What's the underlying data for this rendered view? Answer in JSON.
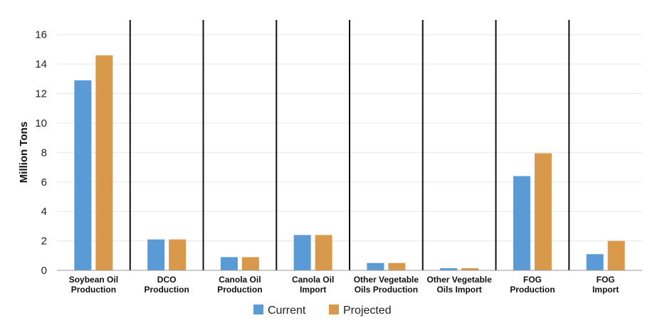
{
  "chart_data": {
    "type": "bar",
    "title": "",
    "xlabel": "",
    "ylabel": "Million Tons",
    "ylim": [
      0,
      17
    ],
    "yticks": [
      0,
      2,
      4,
      6,
      8,
      10,
      12,
      14,
      16
    ],
    "grid": true,
    "legend_position": "bottom",
    "categories": [
      [
        "Soybean Oil",
        "Production"
      ],
      [
        "DCO",
        "Production"
      ],
      [
        "Canola Oil",
        "Production"
      ],
      [
        "Canola Oil",
        "Import"
      ],
      [
        "Other Vegetable",
        "Oils Production"
      ],
      [
        "Other Vegetable",
        "Oils Import"
      ],
      [
        "FOG",
        "Production"
      ],
      [
        "FOG",
        "Import"
      ]
    ],
    "series": [
      {
        "name": "Current",
        "color": "#5b9bd5",
        "values": [
          12.9,
          2.1,
          0.9,
          2.4,
          0.5,
          0.15,
          6.4,
          1.1
        ]
      },
      {
        "name": "Projected",
        "color": "#d89a4a",
        "values": [
          14.6,
          2.1,
          0.9,
          2.4,
          0.5,
          0.15,
          7.95,
          2.0
        ]
      }
    ]
  }
}
